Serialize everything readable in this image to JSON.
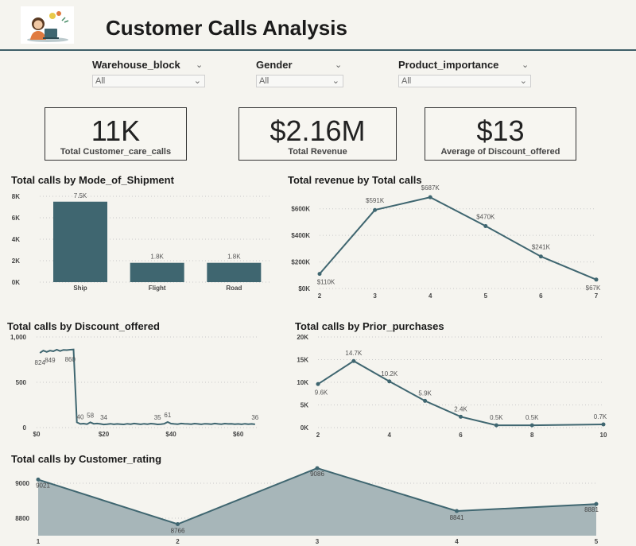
{
  "header": {
    "title": "Customer Calls Analysis"
  },
  "filters": [
    {
      "label": "Warehouse_block",
      "value": "All"
    },
    {
      "label": "Gender",
      "value": "All"
    },
    {
      "label": "Product_importance",
      "value": "All"
    }
  ],
  "cards": [
    {
      "value": "11K",
      "label": "Total Customer_care_calls"
    },
    {
      "value": "$2.16M",
      "label": "Total Revenue"
    },
    {
      "value": "$13",
      "label": "Average of Discount_offered"
    }
  ],
  "colors": {
    "accent": "#3f6670",
    "area": "#a7b6b9",
    "background": "#f5f4ef"
  },
  "chart_data": [
    {
      "id": "shipment",
      "type": "bar",
      "title": "Total calls by Mode_of_Shipment",
      "categories": [
        "Ship",
        "Flight",
        "Road"
      ],
      "values": [
        7500,
        1800,
        1800
      ],
      "data_labels": [
        "7.5K",
        "1.8K",
        "1.8K"
      ],
      "yticks": [
        0,
        2000,
        4000,
        6000,
        8000
      ],
      "ytick_labels": [
        "0K",
        "2K",
        "4K",
        "6K",
        "8K"
      ],
      "ylim": [
        0,
        8000
      ]
    },
    {
      "id": "revenue",
      "type": "line",
      "title": "Total revenue by Total calls",
      "x": [
        2,
        3,
        4,
        5,
        6,
        7
      ],
      "values": [
        110000,
        591000,
        687000,
        470000,
        241000,
        67000
      ],
      "data_labels": [
        "$110K",
        "$591K",
        "$687K",
        "$470K",
        "$241K",
        "$67K"
      ],
      "yticks": [
        0,
        200000,
        400000,
        600000
      ],
      "ytick_labels": [
        "$0K",
        "$200K",
        "$400K",
        "$600K"
      ],
      "ylim": [
        0,
        700000
      ]
    },
    {
      "id": "discount",
      "type": "line",
      "title": "Total calls by Discount_offered",
      "x": [
        1,
        2,
        3,
        4,
        5,
        6,
        7,
        8,
        9,
        10,
        11,
        12,
        13,
        14,
        15,
        16,
        17,
        18,
        19,
        20,
        21,
        22,
        23,
        24,
        25,
        26,
        27,
        28,
        29,
        30,
        31,
        32,
        33,
        34,
        35,
        36,
        37,
        38,
        39,
        40,
        41,
        42,
        43,
        44,
        45,
        46,
        47,
        48,
        49,
        50,
        51,
        52,
        53,
        54,
        55,
        56,
        57,
        58,
        59,
        60,
        61,
        62,
        63,
        64,
        65
      ],
      "values": [
        824,
        850,
        835,
        849,
        842,
        860,
        845,
        858,
        855,
        860,
        862,
        58,
        40,
        44,
        38,
        58,
        42,
        45,
        40,
        34,
        38,
        42,
        36,
        40,
        38,
        35,
        42,
        38,
        45,
        40,
        36,
        42,
        38,
        44,
        40,
        35,
        38,
        42,
        61,
        44,
        40,
        38,
        45,
        42,
        40,
        38,
        44,
        40,
        36,
        42,
        40,
        38,
        45,
        40,
        38,
        44,
        40,
        42,
        38,
        40,
        36,
        42,
        38,
        40,
        36
      ],
      "point_labels": [
        {
          "x": 1,
          "text": "824"
        },
        {
          "x": 4,
          "text": "849"
        },
        {
          "x": 10,
          "text": "860"
        },
        {
          "x": 13,
          "text": "40"
        },
        {
          "x": 16,
          "text": "58"
        },
        {
          "x": 20,
          "text": "34"
        },
        {
          "x": 36,
          "text": "35"
        },
        {
          "x": 39,
          "text": "61"
        },
        {
          "x": 65,
          "text": "36"
        }
      ],
      "yticks": [
        0,
        500,
        1000
      ],
      "ytick_labels": [
        "0",
        "500",
        "1,000"
      ],
      "xticks": [
        0,
        20,
        40,
        60
      ],
      "xtick_labels": [
        "$0",
        "$20",
        "$40",
        "$60"
      ],
      "xlim": [
        0,
        66
      ],
      "ylim": [
        0,
        1000
      ]
    },
    {
      "id": "prior",
      "type": "line",
      "title": "Total calls by Prior_purchases",
      "x": [
        2,
        3,
        4,
        5,
        6,
        7,
        8,
        10
      ],
      "values": [
        9600,
        14700,
        10200,
        5900,
        2400,
        500,
        500,
        700
      ],
      "data_labels": [
        "9.6K",
        "14.7K",
        "10.2K",
        "5.9K",
        "2.4K",
        "0.5K",
        "0.5K",
        "0.7K"
      ],
      "yticks": [
        0,
        5000,
        10000,
        15000,
        20000
      ],
      "ytick_labels": [
        "0K",
        "5K",
        "10K",
        "15K",
        "20K"
      ],
      "xticks": [
        2,
        4,
        6,
        8,
        10
      ],
      "xtick_labels": [
        "2",
        "4",
        "6",
        "8",
        "10"
      ],
      "xlim": [
        2,
        10
      ],
      "ylim": [
        0,
        20000
      ]
    },
    {
      "id": "rating",
      "type": "area",
      "title": "Total calls by Customer_rating",
      "x": [
        1,
        2,
        3,
        4,
        5
      ],
      "values": [
        9021,
        8766,
        9086,
        8841,
        8881
      ],
      "data_labels": [
        "9021",
        "8766",
        "9086",
        "8841",
        "8881"
      ],
      "yticks": [
        8800,
        9000
      ],
      "ytick_labels": [
        "8800",
        "9000"
      ],
      "ylim": [
        8700,
        9100
      ]
    }
  ]
}
